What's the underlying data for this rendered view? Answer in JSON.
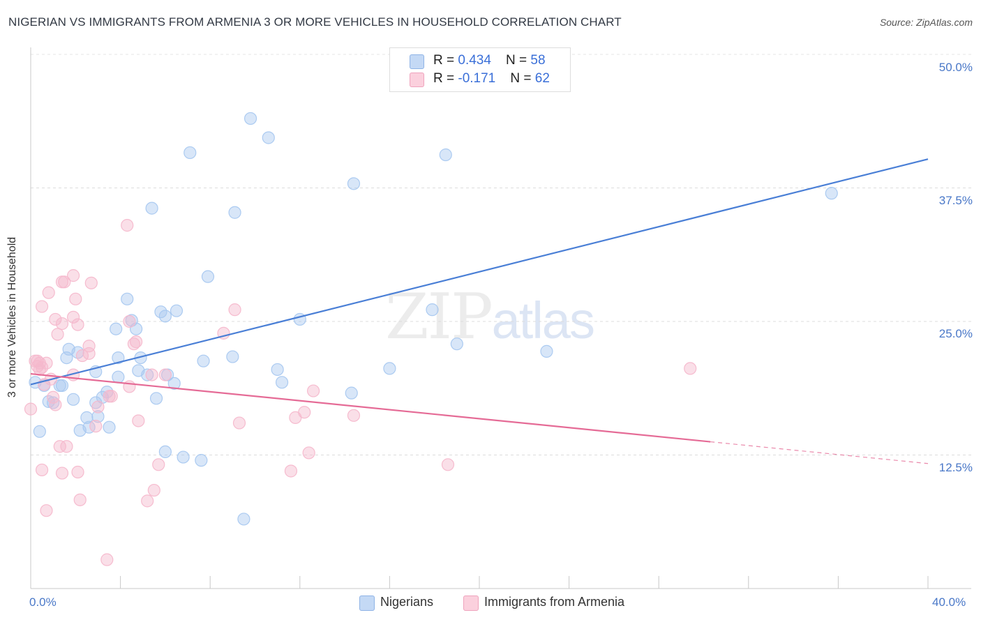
{
  "title": "NIGERIAN VS IMMIGRANTS FROM ARMENIA 3 OR MORE VEHICLES IN HOUSEHOLD CORRELATION CHART",
  "source": "Source: ZipAtlas.com",
  "watermark": {
    "zip": "ZIP",
    "atlas": "atlas"
  },
  "legend_top": [
    {
      "r_label": "R = ",
      "r_value": "0.434",
      "n_label": "N = ",
      "n_value": "58",
      "color": "#a8c8f0"
    },
    {
      "r_label": "R = ",
      "r_value": "-0.171",
      "n_label": "N = ",
      "n_value": "62",
      "color": "#f5b8cc"
    }
  ],
  "legend_bottom": [
    {
      "label": "Nigerians",
      "color": "#a8c8f0"
    },
    {
      "label": "Immigrants from Armenia",
      "color": "#f5b8cc"
    }
  ],
  "chart_data": {
    "type": "scatter",
    "title": "NIGERIAN VS IMMIGRANTS FROM ARMENIA 3 OR MORE VEHICLES IN HOUSEHOLD CORRELATION CHART",
    "xlabel": "",
    "ylabel": "3 or more Vehicles in Household",
    "xlim": [
      0,
      40
    ],
    "ylim": [
      0,
      50
    ],
    "x_tick_labels": [
      "0.0%",
      "40.0%"
    ],
    "y_ticks": [
      12.5,
      25.0,
      37.5,
      50.0
    ],
    "y_tick_labels": [
      "12.5%",
      "25.0%",
      "37.5%",
      "50.0%"
    ],
    "grid": true,
    "series": [
      {
        "name": "Nigerians",
        "color": "#4a7fd6",
        "fill": "#a8c8f0",
        "trend": {
          "x": [
            0,
            40
          ],
          "y": [
            19.1,
            40.2
          ],
          "dashed_from": null
        },
        "points": [
          [
            9.8,
            44.0
          ],
          [
            10.6,
            42.2
          ],
          [
            7.1,
            40.8
          ],
          [
            18.5,
            40.6
          ],
          [
            14.4,
            37.9
          ],
          [
            35.7,
            37.0
          ],
          [
            5.4,
            35.6
          ],
          [
            9.1,
            35.2
          ],
          [
            7.9,
            29.2
          ],
          [
            4.3,
            27.1
          ],
          [
            17.9,
            26.1
          ],
          [
            5.8,
            25.9
          ],
          [
            6.5,
            26.0
          ],
          [
            6.0,
            25.5
          ],
          [
            12.0,
            25.2
          ],
          [
            4.5,
            25.1
          ],
          [
            3.8,
            24.3
          ],
          [
            4.7,
            24.3
          ],
          [
            19.0,
            22.9
          ],
          [
            23.0,
            22.2
          ],
          [
            1.7,
            22.4
          ],
          [
            2.1,
            22.1
          ],
          [
            1.6,
            21.6
          ],
          [
            3.9,
            21.6
          ],
          [
            4.9,
            21.6
          ],
          [
            7.7,
            21.3
          ],
          [
            9.0,
            21.7
          ],
          [
            11.0,
            20.5
          ],
          [
            16.0,
            20.6
          ],
          [
            4.8,
            20.4
          ],
          [
            2.9,
            20.3
          ],
          [
            3.9,
            19.8
          ],
          [
            6.1,
            20.0
          ],
          [
            5.2,
            20.0
          ],
          [
            11.2,
            19.3
          ],
          [
            6.4,
            19.2
          ],
          [
            1.3,
            19.0
          ],
          [
            1.4,
            19.0
          ],
          [
            0.6,
            19.0
          ],
          [
            3.4,
            18.4
          ],
          [
            3.2,
            17.9
          ],
          [
            14.3,
            18.3
          ],
          [
            5.6,
            17.8
          ],
          [
            0.8,
            17.5
          ],
          [
            1.9,
            17.7
          ],
          [
            1.0,
            17.4
          ],
          [
            2.9,
            17.4
          ],
          [
            3.0,
            16.1
          ],
          [
            2.5,
            16.0
          ],
          [
            2.2,
            14.8
          ],
          [
            3.5,
            15.1
          ],
          [
            2.6,
            15.1
          ],
          [
            0.4,
            14.7
          ],
          [
            6.0,
            12.8
          ],
          [
            6.8,
            12.3
          ],
          [
            7.6,
            12.0
          ],
          [
            9.5,
            6.5
          ],
          [
            0.2,
            19.3
          ]
        ]
      },
      {
        "name": "Immigrants from Armenia",
        "color": "#e56b96",
        "fill": "#f5b8cc",
        "trend": {
          "x": [
            0,
            40
          ],
          "y": [
            20.1,
            11.7
          ],
          "dashed_from": 30.3
        },
        "points": [
          [
            4.3,
            34.0
          ],
          [
            1.9,
            29.3
          ],
          [
            1.5,
            28.7
          ],
          [
            1.4,
            28.7
          ],
          [
            2.7,
            28.6
          ],
          [
            0.8,
            27.7
          ],
          [
            2.0,
            27.1
          ],
          [
            0.5,
            26.4
          ],
          [
            9.1,
            26.1
          ],
          [
            1.9,
            25.4
          ],
          [
            1.1,
            25.2
          ],
          [
            4.4,
            25.0
          ],
          [
            1.4,
            24.8
          ],
          [
            2.1,
            24.7
          ],
          [
            8.6,
            23.9
          ],
          [
            1.2,
            23.8
          ],
          [
            4.7,
            23.1
          ],
          [
            4.6,
            22.9
          ],
          [
            2.6,
            22.7
          ],
          [
            2.6,
            22.0
          ],
          [
            2.3,
            21.8
          ],
          [
            0.3,
            21.3
          ],
          [
            0.4,
            21.1
          ],
          [
            0.7,
            21.1
          ],
          [
            0.3,
            20.8
          ],
          [
            0.5,
            20.7
          ],
          [
            29.4,
            20.6
          ],
          [
            1.9,
            20.0
          ],
          [
            6.0,
            20.0
          ],
          [
            0.9,
            19.6
          ],
          [
            4.4,
            18.9
          ],
          [
            5.4,
            20.0
          ],
          [
            0.6,
            19.1
          ],
          [
            3.5,
            18.0
          ],
          [
            12.6,
            18.5
          ],
          [
            3.6,
            18.0
          ],
          [
            1.0,
            17.9
          ],
          [
            1.1,
            17.2
          ],
          [
            0.0,
            16.8
          ],
          [
            3.0,
            17.0
          ],
          [
            12.2,
            16.5
          ],
          [
            14.4,
            16.2
          ],
          [
            11.8,
            16.0
          ],
          [
            4.8,
            15.7
          ],
          [
            9.3,
            15.5
          ],
          [
            2.9,
            15.2
          ],
          [
            1.3,
            13.3
          ],
          [
            1.6,
            13.3
          ],
          [
            12.4,
            12.7
          ],
          [
            18.6,
            11.6
          ],
          [
            5.7,
            11.6
          ],
          [
            0.5,
            11.1
          ],
          [
            1.4,
            10.8
          ],
          [
            2.1,
            10.9
          ],
          [
            11.6,
            11.0
          ],
          [
            5.5,
            9.2
          ],
          [
            2.2,
            8.3
          ],
          [
            5.2,
            8.2
          ],
          [
            0.7,
            7.3
          ],
          [
            3.4,
            2.7
          ],
          [
            0.2,
            21.3
          ],
          [
            0.4,
            20.5
          ]
        ]
      }
    ]
  }
}
